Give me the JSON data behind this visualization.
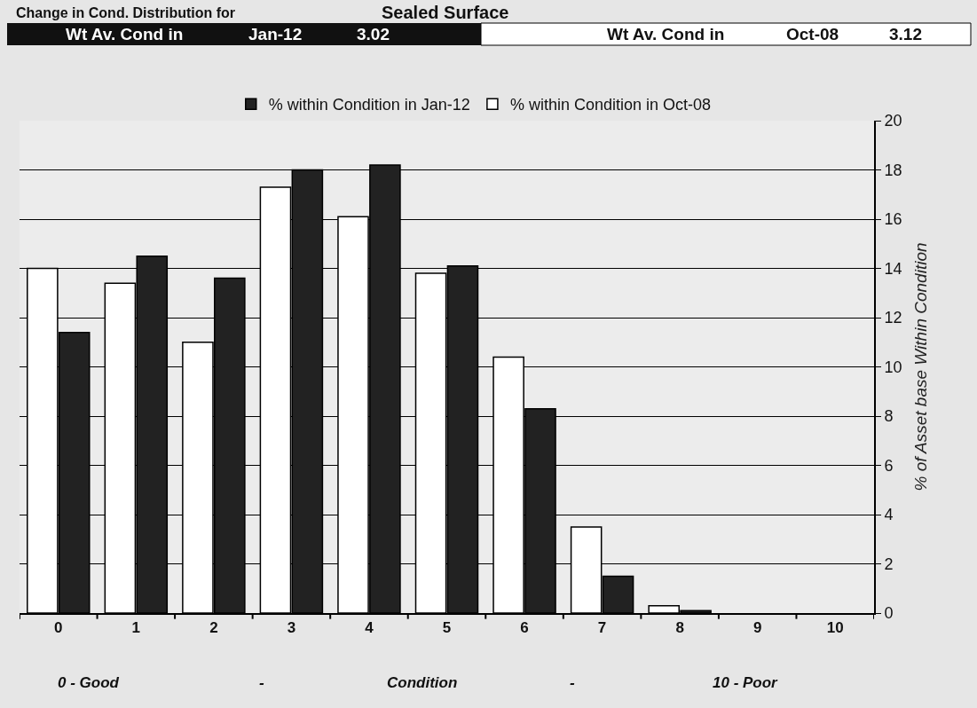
{
  "chart_data": {
    "type": "bar",
    "title": "Change in Cond. Distribution for",
    "subtitle": "Sealed Surface",
    "ylabel": "% of Asset base Within Condition",
    "categories": [
      "0",
      "1",
      "2",
      "3",
      "4",
      "5",
      "6",
      "7",
      "8",
      "9",
      "10"
    ],
    "series": [
      {
        "name": "% within Condition in Oct-08",
        "color": "#ffffff",
        "values": [
          14.0,
          13.4,
          11.0,
          17.3,
          16.1,
          13.8,
          10.4,
          3.5,
          0.3,
          0,
          0
        ]
      },
      {
        "name": "% within Condition in Jan-12",
        "color": "#222222",
        "values": [
          11.4,
          14.5,
          13.6,
          18.0,
          18.2,
          14.1,
          8.3,
          1.5,
          0.1,
          0,
          0
        ]
      }
    ],
    "ylim": [
      0,
      20
    ],
    "yticks": [
      0,
      2,
      4,
      6,
      8,
      10,
      12,
      14,
      16,
      18,
      20
    ],
    "grid": "y",
    "legend": "top",
    "annotations": [
      "Wt Av. Cond in",
      "Jan-12",
      "3.02",
      "Wt Av. Cond in",
      "Oct-08",
      "3.12",
      "0 - Good",
      "-",
      "Condition",
      "-",
      "10 - Poor"
    ]
  }
}
